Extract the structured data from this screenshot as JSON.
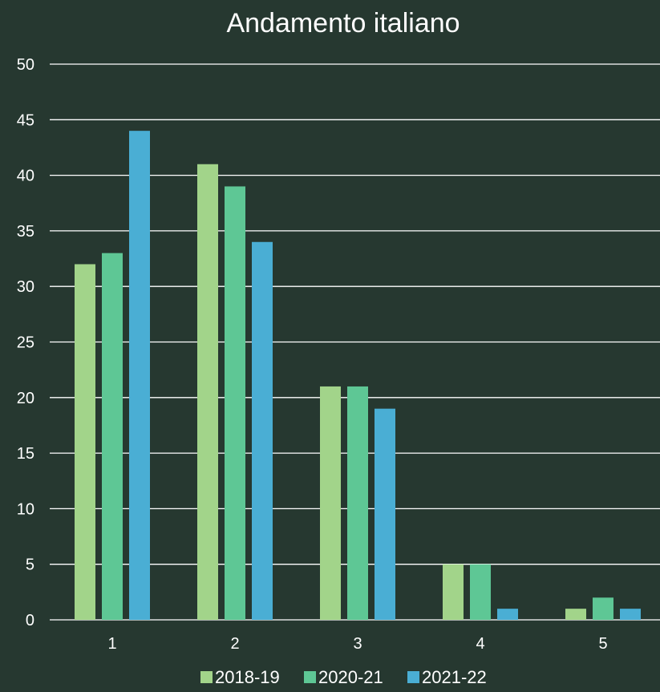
{
  "colors": {
    "background": "#263830",
    "text": "#ffffff",
    "grid": "#ffffff"
  },
  "chart_data": {
    "type": "bar",
    "title": "Andamento italiano",
    "xlabel": "",
    "ylabel": "",
    "categories": [
      "1",
      "2",
      "3",
      "4",
      "5"
    ],
    "series": [
      {
        "name": "2018-19",
        "color": "#a2d48a",
        "values": [
          32,
          41,
          21,
          5,
          1
        ]
      },
      {
        "name": "2020-21",
        "color": "#5ec795",
        "values": [
          33,
          39,
          21,
          5,
          2
        ]
      },
      {
        "name": "2021-22",
        "color": "#4aaed4",
        "values": [
          44,
          34,
          19,
          1,
          1
        ]
      }
    ],
    "ylim": [
      0,
      50
    ],
    "yticks": [
      0,
      5,
      10,
      15,
      20,
      25,
      30,
      35,
      40,
      45,
      50
    ],
    "grid": true,
    "legend": "bottom"
  }
}
